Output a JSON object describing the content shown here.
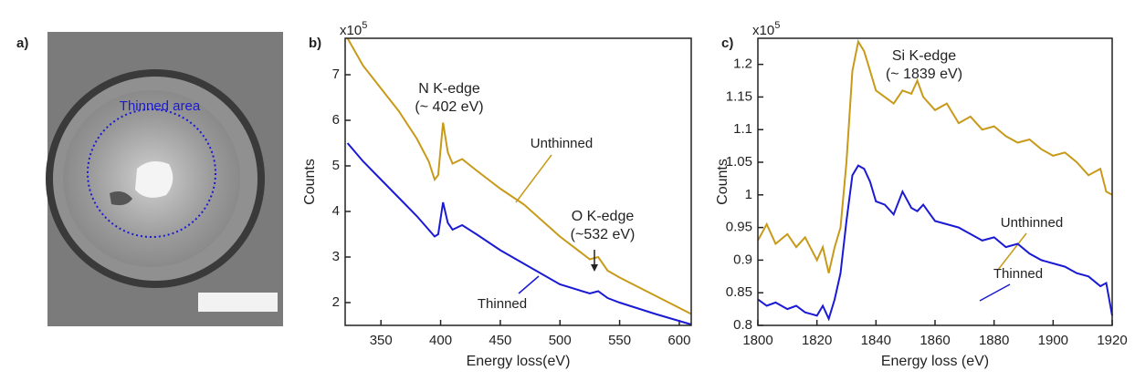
{
  "panel_a": {
    "label": "a)",
    "annotation": "Thinned area"
  },
  "chart_data": [
    {
      "type": "line",
      "panel_label": "b)",
      "x_label": "Energy loss(eV)",
      "y_label": "Counts",
      "y_multiplier": {
        "base": "x10",
        "exponent": "5"
      },
      "annotations": [
        "N K-edge",
        "(~ 402 eV)",
        "O K-edge",
        "(~532 eV)"
      ],
      "x": [
        322,
        335,
        350,
        365,
        380,
        390,
        395,
        398,
        402,
        406,
        410,
        418,
        430,
        450,
        470,
        500,
        525,
        532,
        540,
        550,
        580,
        610
      ],
      "series": [
        {
          "name": "Unthinned",
          "color": "#c89a1a",
          "values": [
            7.8,
            7.2,
            6.7,
            6.2,
            5.6,
            5.1,
            4.7,
            4.8,
            5.95,
            5.3,
            5.05,
            5.15,
            4.9,
            4.5,
            4.15,
            3.45,
            2.95,
            3.0,
            2.7,
            2.55,
            2.15,
            1.75
          ]
        },
        {
          "name": "Thinned",
          "color": "#1a1ad4",
          "values": [
            5.5,
            5.1,
            4.7,
            4.3,
            3.9,
            3.6,
            3.45,
            3.5,
            4.2,
            3.75,
            3.6,
            3.7,
            3.5,
            3.15,
            2.85,
            2.4,
            2.2,
            2.25,
            2.1,
            2.0,
            1.75,
            1.52
          ]
        }
      ],
      "xlim": [
        320,
        610
      ],
      "xticks": [
        350,
        400,
        450,
        500,
        550,
        600
      ],
      "ylim": [
        1.5,
        7.8
      ],
      "yticks": [
        2,
        3,
        4,
        5,
        6,
        7
      ]
    },
    {
      "type": "line",
      "panel_label": "c)",
      "x_label": "Energy loss (eV)",
      "y_label": "Counts",
      "y_multiplier": {
        "base": "x10",
        "exponent": "5"
      },
      "annotations": [
        "Si K-edge",
        "(~ 1839 eV)"
      ],
      "x": [
        1800,
        1803,
        1806,
        1810,
        1813,
        1816,
        1820,
        1822,
        1824,
        1826,
        1828,
        1830,
        1832,
        1834,
        1836,
        1838,
        1840,
        1843,
        1846,
        1849,
        1852,
        1854,
        1856,
        1860,
        1864,
        1868,
        1872,
        1876,
        1880,
        1884,
        1888,
        1892,
        1896,
        1900,
        1904,
        1908,
        1912,
        1916,
        1918,
        1920
      ],
      "series": [
        {
          "name": "Unthinned",
          "color": "#c89a1a",
          "values": [
            0.93,
            0.955,
            0.925,
            0.94,
            0.92,
            0.935,
            0.9,
            0.92,
            0.88,
            0.92,
            0.95,
            1.05,
            1.19,
            1.235,
            1.22,
            1.19,
            1.16,
            1.15,
            1.14,
            1.16,
            1.155,
            1.175,
            1.15,
            1.13,
            1.14,
            1.11,
            1.12,
            1.1,
            1.105,
            1.09,
            1.08,
            1.085,
            1.07,
            1.06,
            1.065,
            1.05,
            1.03,
            1.04,
            1.005,
            1.0
          ]
        },
        {
          "name": "Thinned",
          "color": "#1a1ad4",
          "values": [
            0.84,
            0.83,
            0.835,
            0.825,
            0.83,
            0.82,
            0.815,
            0.83,
            0.81,
            0.84,
            0.88,
            0.96,
            1.03,
            1.045,
            1.04,
            1.02,
            0.99,
            0.985,
            0.97,
            1.005,
            0.98,
            0.975,
            0.985,
            0.96,
            0.955,
            0.95,
            0.94,
            0.93,
            0.935,
            0.92,
            0.925,
            0.91,
            0.9,
            0.895,
            0.89,
            0.88,
            0.875,
            0.86,
            0.865,
            0.815
          ]
        }
      ],
      "xlim": [
        1800,
        1920
      ],
      "xticks": [
        1800,
        1820,
        1840,
        1860,
        1880,
        1900,
        1920
      ],
      "ylim": [
        0.8,
        1.24
      ],
      "yticks": [
        0.8,
        0.85,
        0.9,
        0.95,
        1,
        1.05,
        1.1,
        1.15,
        1.2
      ]
    }
  ]
}
